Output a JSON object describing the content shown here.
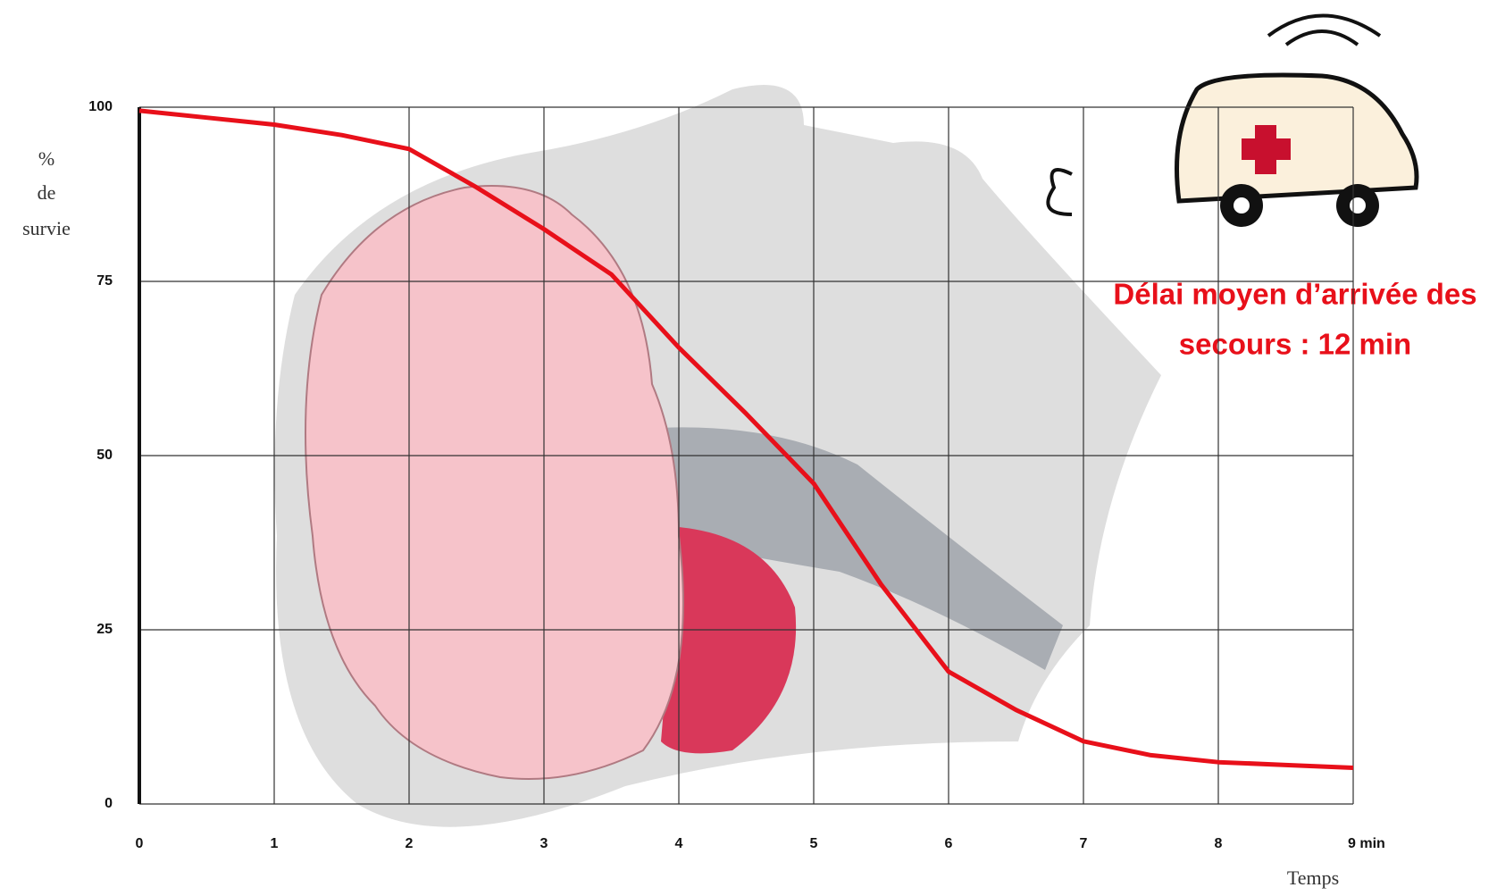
{
  "chart_data": {
    "type": "line",
    "ylabel": [
      "%",
      "de",
      "survie"
    ],
    "xlabel": "Temps",
    "annotation": [
      "Délai moyen d’arrivée des",
      "secours : 12 min"
    ],
    "x": [
      0,
      0.5,
      1,
      1.5,
      2,
      2.5,
      3,
      3.5,
      4,
      4.5,
      5,
      5.5,
      6,
      6.5,
      7,
      7.5,
      8,
      8.5,
      9
    ],
    "series": [
      {
        "color": "#e8101a",
        "values": [
          99.5,
          98.5,
          97.5,
          96,
          94,
          88.5,
          82.5,
          76,
          65.5,
          56,
          46,
          31.5,
          19,
          13.5,
          9,
          7,
          6,
          5.6,
          5.2
        ]
      }
    ],
    "xlim": [
      0,
      9
    ],
    "ylim": [
      0,
      100
    ],
    "xticks": [
      0,
      1,
      2,
      3,
      4,
      5,
      6,
      7,
      8,
      {
        "value": 9,
        "label": "9 min"
      }
    ],
    "yticks": [
      0,
      25,
      50,
      75,
      100
    ],
    "grid": true
  }
}
